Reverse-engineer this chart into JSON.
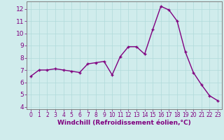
{
  "x": [
    0,
    1,
    2,
    3,
    4,
    5,
    6,
    7,
    8,
    9,
    10,
    11,
    12,
    13,
    14,
    15,
    16,
    17,
    18,
    19,
    20,
    21,
    22,
    23
  ],
  "y": [
    6.5,
    7.0,
    7.0,
    7.1,
    7.0,
    6.9,
    6.8,
    7.5,
    7.6,
    7.7,
    6.6,
    8.1,
    8.9,
    8.9,
    8.3,
    10.3,
    12.2,
    11.9,
    11.0,
    8.5,
    6.8,
    5.8,
    4.9,
    4.5
  ],
  "line_color": "#800080",
  "marker": "P",
  "marker_size": 2.5,
  "line_width": 1.0,
  "xlabel": "Windchill (Refroidissement éolien,°C)",
  "xlabel_color": "#800080",
  "xlabel_fontsize": 6.5,
  "xtick_labels": [
    "0",
    "1",
    "2",
    "3",
    "4",
    "5",
    "6",
    "7",
    "8",
    "9",
    "10",
    "11",
    "12",
    "13",
    "14",
    "15",
    "16",
    "17",
    "18",
    "19",
    "20",
    "21",
    "22",
    "23"
  ],
  "xtick_fontsize": 5.5,
  "ytick_fontsize": 6.5,
  "ylim": [
    3.8,
    12.6
  ],
  "xlim": [
    -0.5,
    23.5
  ],
  "yticks": [
    4,
    5,
    6,
    7,
    8,
    9,
    10,
    11,
    12
  ],
  "xtick_color": "#800080",
  "ytick_color": "#800080",
  "grid_color": "#b0dada",
  "background_color": "#d0ecec",
  "spine_color": "#808080",
  "title": ""
}
